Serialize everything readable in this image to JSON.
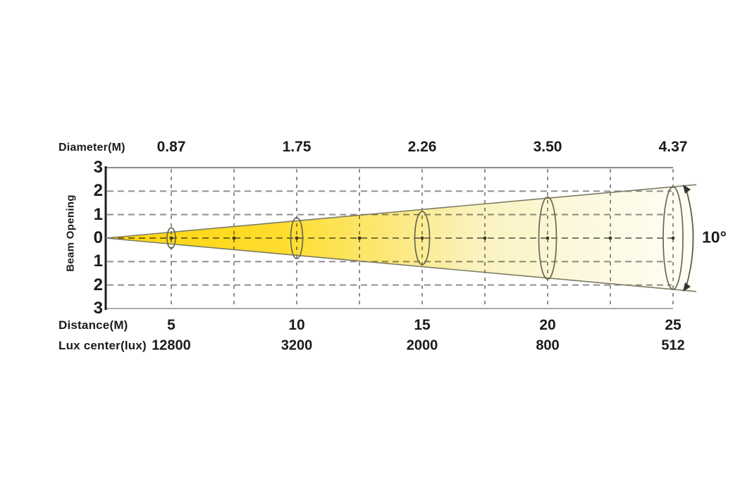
{
  "chart_data": {
    "type": "area",
    "subtype": "photometric-beam-cone",
    "beam_angle_label": "10°",
    "y_axis": {
      "label": "Beam Opening",
      "ticks": [
        "3",
        "2",
        "1",
        "0",
        "1",
        "2",
        "3"
      ],
      "range": [
        -3,
        3
      ],
      "grid": true
    },
    "x_axis": {
      "range_m": [
        2.5,
        25
      ],
      "gridline_step_m": 2.5,
      "grid": true
    },
    "top_row": {
      "label": "Diameter(M)",
      "values": [
        "0.87",
        "1.75",
        "2.26",
        "3.50",
        "4.37"
      ]
    },
    "bottom_rows": [
      {
        "label": "Distance(M)",
        "values": [
          "5",
          "10",
          "15",
          "20",
          "25"
        ]
      },
      {
        "label": "Lux center(lux)",
        "values": [
          "12800",
          "3200",
          "2000",
          "800",
          "512"
        ]
      }
    ],
    "distances_m": [
      5,
      10,
      15,
      20,
      25
    ],
    "diameters_m": [
      0.87,
      1.75,
      2.26,
      3.5,
      4.37
    ],
    "lux_center": [
      12800,
      3200,
      2000,
      800,
      512
    ],
    "legend": "none",
    "colors": {
      "beam_gradient": [
        "#ffd40e",
        "#ffdd2e",
        "#fce87a",
        "#faf2bc",
        "#fcf8dd",
        "#fffef6"
      ],
      "grid": "#8f8f8f",
      "axis": "#1f1f1f",
      "top_border": "#8a8a8a",
      "bottom_border": "#ababab",
      "beam_edge": "#7c7c66",
      "ellipse_stroke": "#686853",
      "center_dot": "#463a20",
      "arc": "#5a5a5a",
      "text": "#1b1b1b"
    }
  }
}
